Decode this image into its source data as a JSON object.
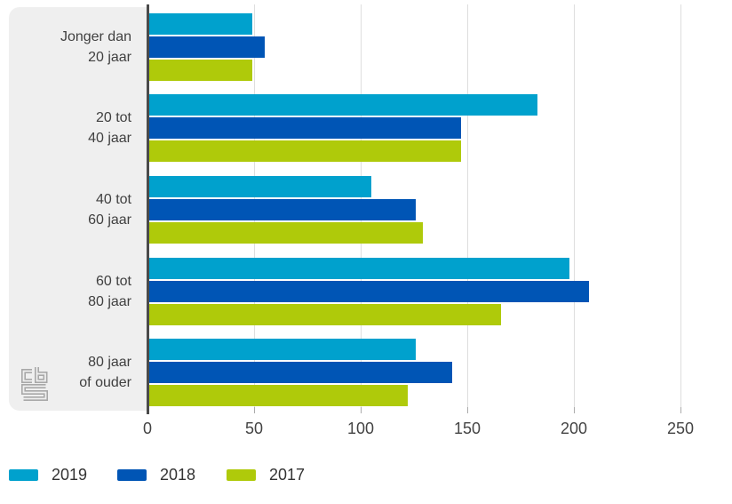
{
  "chart_data": {
    "type": "bar",
    "orientation": "horizontal",
    "title": "",
    "categories": [
      "Jonger dan 20 jaar",
      "20 tot 40 jaar",
      "40 tot 60 jaar",
      "60 tot 80 jaar",
      "80 jaar of ouder"
    ],
    "category_lines": [
      [
        "Jonger dan",
        "20 jaar"
      ],
      [
        "20 tot",
        "40 jaar"
      ],
      [
        "40 tot",
        "60 jaar"
      ],
      [
        "60 tot",
        "80 jaar"
      ],
      [
        "80 jaar",
        "of ouder"
      ]
    ],
    "series": [
      {
        "name": "2019",
        "color": "#00a1cd",
        "values": [
          49,
          183,
          105,
          198,
          126
        ]
      },
      {
        "name": "2018",
        "color": "#0055b5",
        "values": [
          55,
          147,
          126,
          207,
          143
        ]
      },
      {
        "name": "2017",
        "color": "#afca0a",
        "values": [
          49,
          147,
          129,
          166,
          122
        ]
      }
    ],
    "xlabel": "",
    "ylabel": "",
    "xlim": [
      0,
      250
    ],
    "xticks": [
      0,
      50,
      100,
      150,
      200,
      250
    ],
    "grid": true,
    "legend_position": "bottom-left"
  },
  "colors": {
    "panel_bg": "#efefef",
    "axis_line": "#4a4a4a",
    "gridline": "#dedede",
    "tick_text": "#444444",
    "category_text": "#404040",
    "legend_text": "#333333",
    "logo_outline": "#a8a8a8"
  },
  "icons": {
    "cbs_logo": "cbs-logo"
  }
}
